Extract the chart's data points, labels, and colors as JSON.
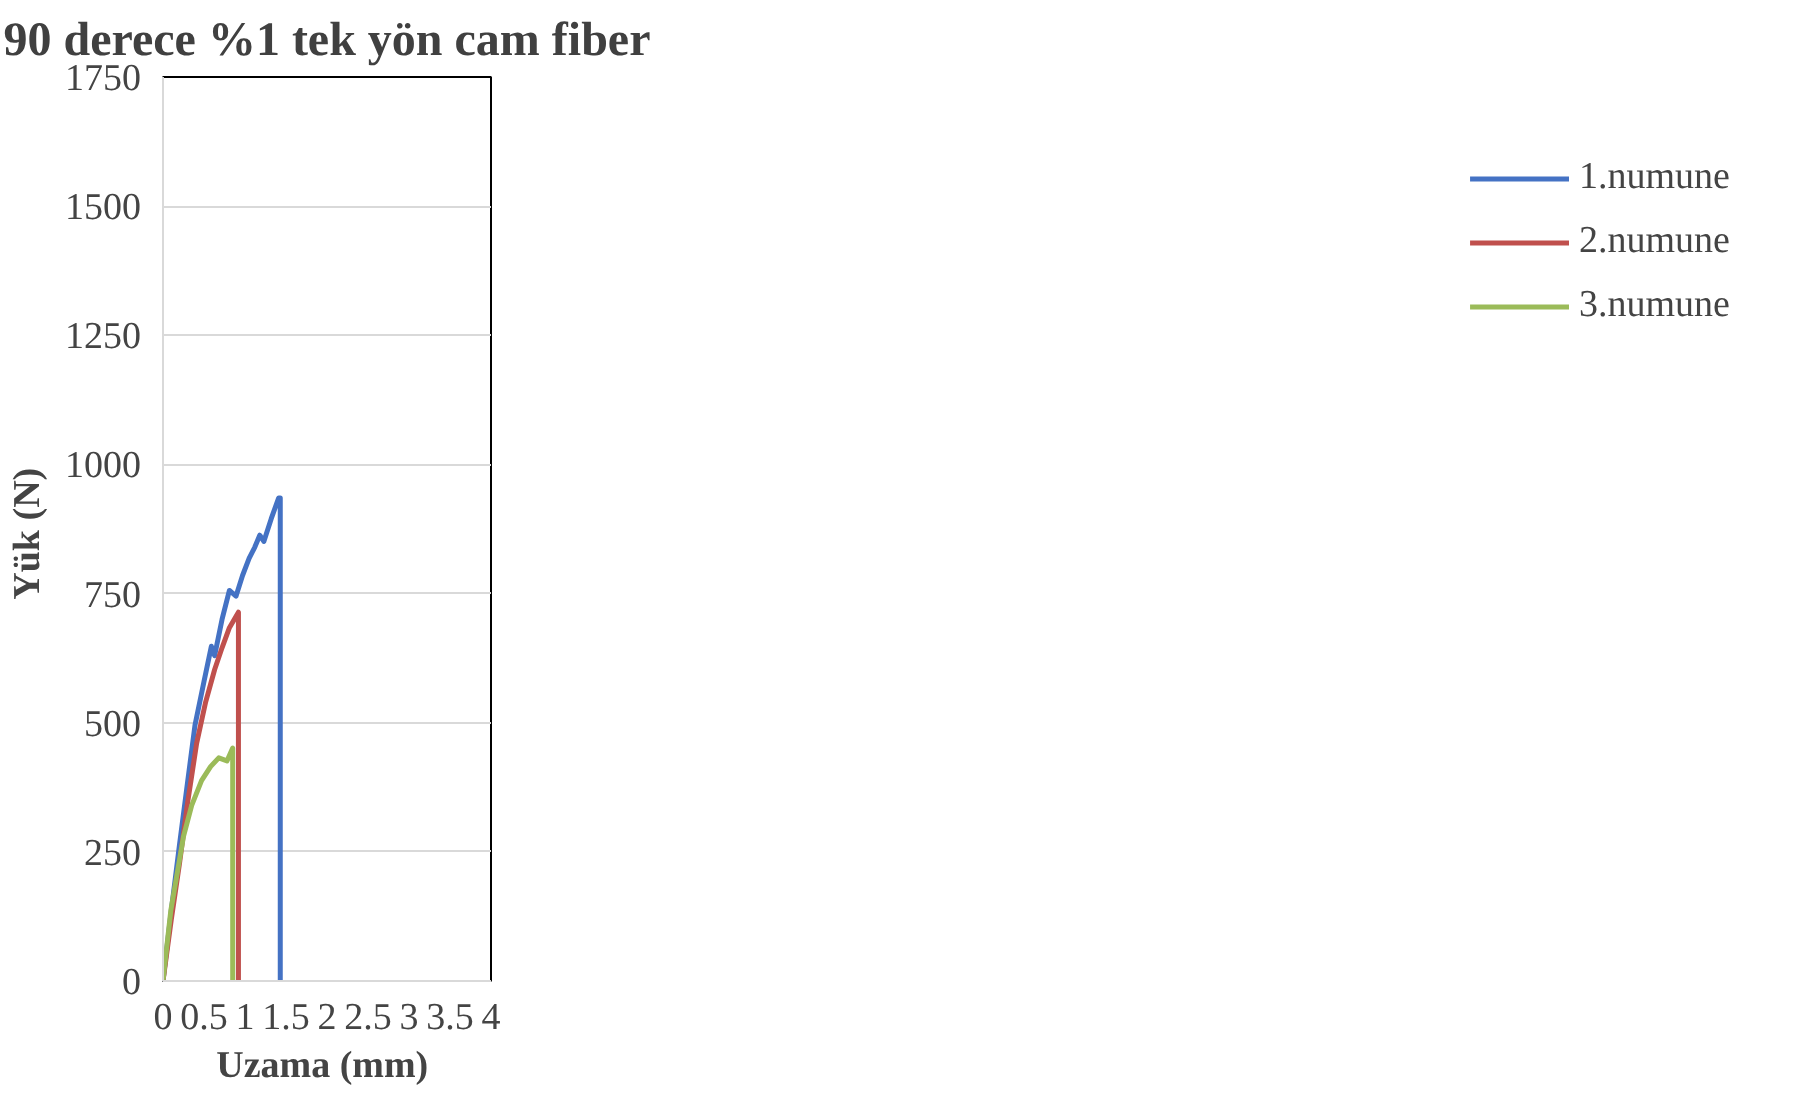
{
  "chart_data": {
    "type": "line",
    "title": "90 derece %1 tek yön cam fiber",
    "xlabel": "Uzama  (mm)",
    "ylabel": "Yük  (N)",
    "xlim": [
      0,
      4
    ],
    "xticks": [
      0,
      0.5,
      1,
      1.5,
      2,
      2.5,
      3,
      3.5,
      4
    ],
    "ylim": [
      0,
      1750
    ],
    "yticks": [
      0,
      250,
      500,
      750,
      1000,
      1250,
      1500,
      1750
    ],
    "grid": "y",
    "legend": "right",
    "series": [
      {
        "name": "1.numune",
        "color": "#4472c4",
        "x": [
          0,
          0.1,
          0.2,
          0.3,
          0.39,
          0.5,
          0.59,
          0.63,
          0.72,
          0.81,
          0.89,
          0.97,
          1.05,
          1.12,
          1.18,
          1.23,
          1.32,
          1.41,
          1.43,
          1.43
        ],
        "values": [
          0,
          135,
          262,
          385,
          495,
          580,
          648,
          630,
          700,
          756,
          745,
          785,
          818,
          840,
          863,
          851,
          895,
          935,
          935,
          0
        ]
      },
      {
        "name": "2.numune",
        "color": "#c0504d",
        "x": [
          0,
          0.1,
          0.2,
          0.3,
          0.41,
          0.52,
          0.63,
          0.72,
          0.81,
          0.92,
          0.92
        ],
        "values": [
          0,
          118,
          226,
          345,
          460,
          540,
          603,
          645,
          684,
          714,
          0
        ]
      },
      {
        "name": "3.numune",
        "color": "#9bbb59",
        "x": [
          0,
          0.095,
          0.25,
          0.35,
          0.47,
          0.58,
          0.68,
          0.78,
          0.85,
          0.85
        ],
        "values": [
          0,
          136,
          280,
          340,
          388,
          415,
          432,
          426,
          451,
          0
        ]
      }
    ]
  }
}
